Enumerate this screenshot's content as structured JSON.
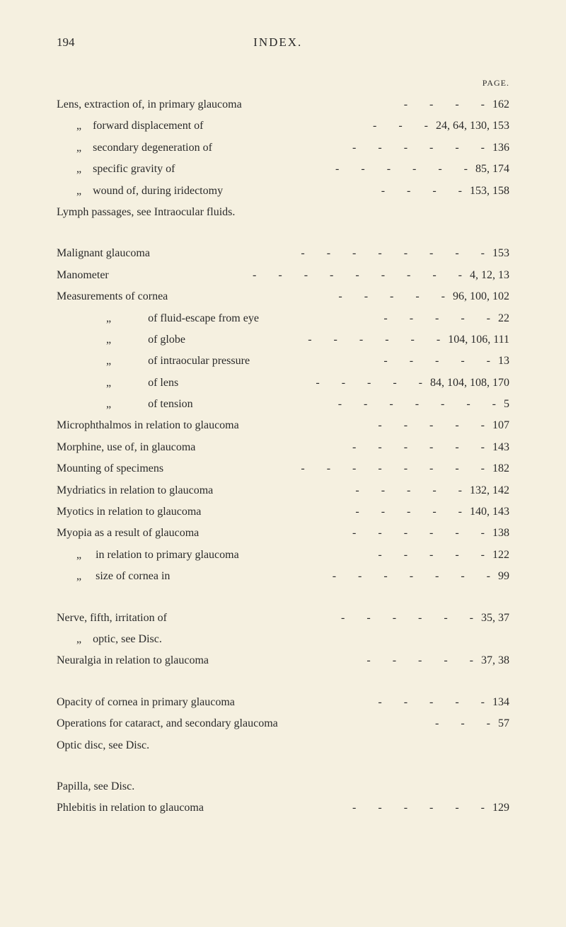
{
  "header": {
    "pageNumber": "194",
    "title": "INDEX."
  },
  "pageLabel": "PAGE.",
  "groups": [
    {
      "entries": [
        {
          "text": "Lens, extraction of, in primary glaucoma",
          "dashes": "-    -    -    -",
          "pages": "162",
          "indent": 0
        },
        {
          "text": "„    forward displacement of",
          "dashes": "-    -    -",
          "pages": "24, 64, 130, 153",
          "indent": 1
        },
        {
          "text": "„    secondary degeneration of",
          "dashes": "-    -    -    -    -    -",
          "pages": "136",
          "indent": 1
        },
        {
          "text": "„    specific gravity of",
          "dashes": "-    -    -    -    -    -",
          "pages": "85, 174",
          "indent": 1
        },
        {
          "text": "„    wound of, during iridectomy",
          "dashes": "-    -    -    -",
          "pages": "153, 158",
          "indent": 1
        },
        {
          "text": "Lymph passages, see Intraocular fluids.",
          "dashes": "",
          "pages": "",
          "indent": 0,
          "noPages": true
        }
      ]
    },
    {
      "entries": [
        {
          "text": "Malignant glaucoma",
          "dashes": "-    -    -    -    -    -    -    -",
          "pages": "153",
          "indent": 0
        },
        {
          "text": "Manometer",
          "dashes": "-    -    -    -    -    -    -    -    -",
          "pages": "4, 12, 13",
          "indent": 0
        },
        {
          "text": "Measurements of cornea",
          "dashes": "-    -    -    -    -",
          "pages": "96, 100, 102",
          "indent": 0
        },
        {
          "text": "„             of fluid-escape from eye",
          "dashes": "-    -    -    -    -",
          "pages": "22",
          "indent": 2
        },
        {
          "text": "„             of globe",
          "dashes": "-    -    -    -    -    -",
          "pages": "104, 106, 111",
          "indent": 2
        },
        {
          "text": "„             of intraocular pressure",
          "dashes": "-    -    -    -    -",
          "pages": "13",
          "indent": 2
        },
        {
          "text": "„             of lens",
          "dashes": "-    -    -    -    -",
          "pages": "84, 104, 108, 170",
          "indent": 2
        },
        {
          "text": "„             of tension",
          "dashes": "-    -    -    -    -    -    -",
          "pages": "5",
          "indent": 2
        },
        {
          "text": "Microphthalmos in relation to glaucoma",
          "dashes": "-    -    -    -    -",
          "pages": "107",
          "indent": 0
        },
        {
          "text": "Morphine, use of, in glaucoma",
          "dashes": "-    -    -    -    -    -",
          "pages": "143",
          "indent": 0
        },
        {
          "text": "Mounting of specimens",
          "dashes": "-    -    -    -    -    -    -    -",
          "pages": "182",
          "indent": 0
        },
        {
          "text": "Mydriatics in relation to glaucoma",
          "dashes": "-    -    -    -    -",
          "pages": "132, 142",
          "indent": 0
        },
        {
          "text": "Myotics in relation to glaucoma",
          "dashes": "-    -    -    -    -",
          "pages": "140, 143",
          "indent": 0
        },
        {
          "text": "Myopia as a result of glaucoma",
          "dashes": "-    -    -    -    -    -",
          "pages": "138",
          "indent": 0
        },
        {
          "text": "„     in relation to primary glaucoma",
          "dashes": "-    -    -    -    -",
          "pages": "122",
          "indent": 1
        },
        {
          "text": "„     size of cornea in",
          "dashes": "-    -    -    -    -    -    -",
          "pages": "99",
          "indent": 1
        }
      ]
    },
    {
      "entries": [
        {
          "text": "Nerve, fifth, irritation of",
          "dashes": "-    -    -    -    -    -",
          "pages": "35, 37",
          "indent": 0
        },
        {
          "text": "„    optic, see Disc.",
          "dashes": "",
          "pages": "",
          "indent": 1,
          "noPages": true
        },
        {
          "text": "Neuralgia in relation to glaucoma",
          "dashes": "-    -    -    -    -",
          "pages": "37, 38",
          "indent": 0
        }
      ]
    },
    {
      "entries": [
        {
          "text": "Opacity of cornea in primary glaucoma",
          "dashes": "-    -    -    -    -",
          "pages": "134",
          "indent": 0
        },
        {
          "text": "Operations for cataract, and secondary glaucoma",
          "dashes": "-    -    -",
          "pages": "57",
          "indent": 0
        },
        {
          "text": "Optic disc, see Disc.",
          "dashes": "",
          "pages": "",
          "indent": 0,
          "noPages": true
        }
      ]
    },
    {
      "entries": [
        {
          "text": "Papilla, see Disc.",
          "dashes": "",
          "pages": "",
          "indent": 0,
          "noPages": true
        },
        {
          "text": "Phlebitis in relation to glaucoma",
          "dashes": "-    -    -    -    -    -",
          "pages": "129",
          "indent": 0
        }
      ]
    }
  ],
  "styling": {
    "backgroundColor": "#f5f0e0",
    "textColor": "#2a2a2a",
    "fontFamily": "Georgia, Times New Roman, serif",
    "pageWidth": 800,
    "pageHeight": 1309,
    "bodyFontSize": 16,
    "headerFontSize": 17,
    "labelFontSize": 12
  }
}
